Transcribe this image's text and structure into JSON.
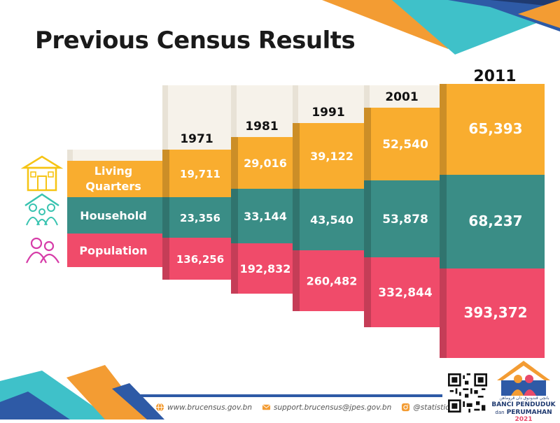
{
  "title": "Previous Census Results",
  "colors": {
    "living_quarters": "#f9ad2f",
    "household": "#3a8d86",
    "population": "#f04b6a",
    "header_panel": "#f6f2ea",
    "icon_yellow": "#f6c414",
    "icon_teal": "#38c3b0",
    "icon_magenta": "#d63ca8"
  },
  "row_labels": {
    "living_quarters": "Living Quarters",
    "household": "Household",
    "population": "Population"
  },
  "icons": {
    "living_quarters": "house-icon",
    "household": "family-group-icon",
    "population": "people-icon"
  },
  "chart_data": {
    "type": "table",
    "title": "Previous Census Results",
    "categories": [
      "1971",
      "1981",
      "1991",
      "2001",
      "2011"
    ],
    "series": [
      {
        "name": "Living Quarters",
        "values": [
          19711,
          29016,
          39122,
          52540,
          65393
        ]
      },
      {
        "name": "Household",
        "values": [
          23356,
          33144,
          43540,
          53878,
          68237
        ]
      },
      {
        "name": "Population",
        "values": [
          136256,
          192832,
          260482,
          332844,
          393372
        ]
      }
    ]
  },
  "footer": {
    "website": "www.brucensus.gov.bn",
    "email": "support.brucensus@jpes.gov.bn",
    "social": "@statistics.jpes"
  },
  "logo": {
    "jawi": "بانچي ڤندودوق دان ڤروماهن",
    "line1": "BANCI PENDUDUK",
    "line2_prefix": "dan",
    "line2_main": "PERUMAHAN",
    "line2_year": "2021"
  }
}
